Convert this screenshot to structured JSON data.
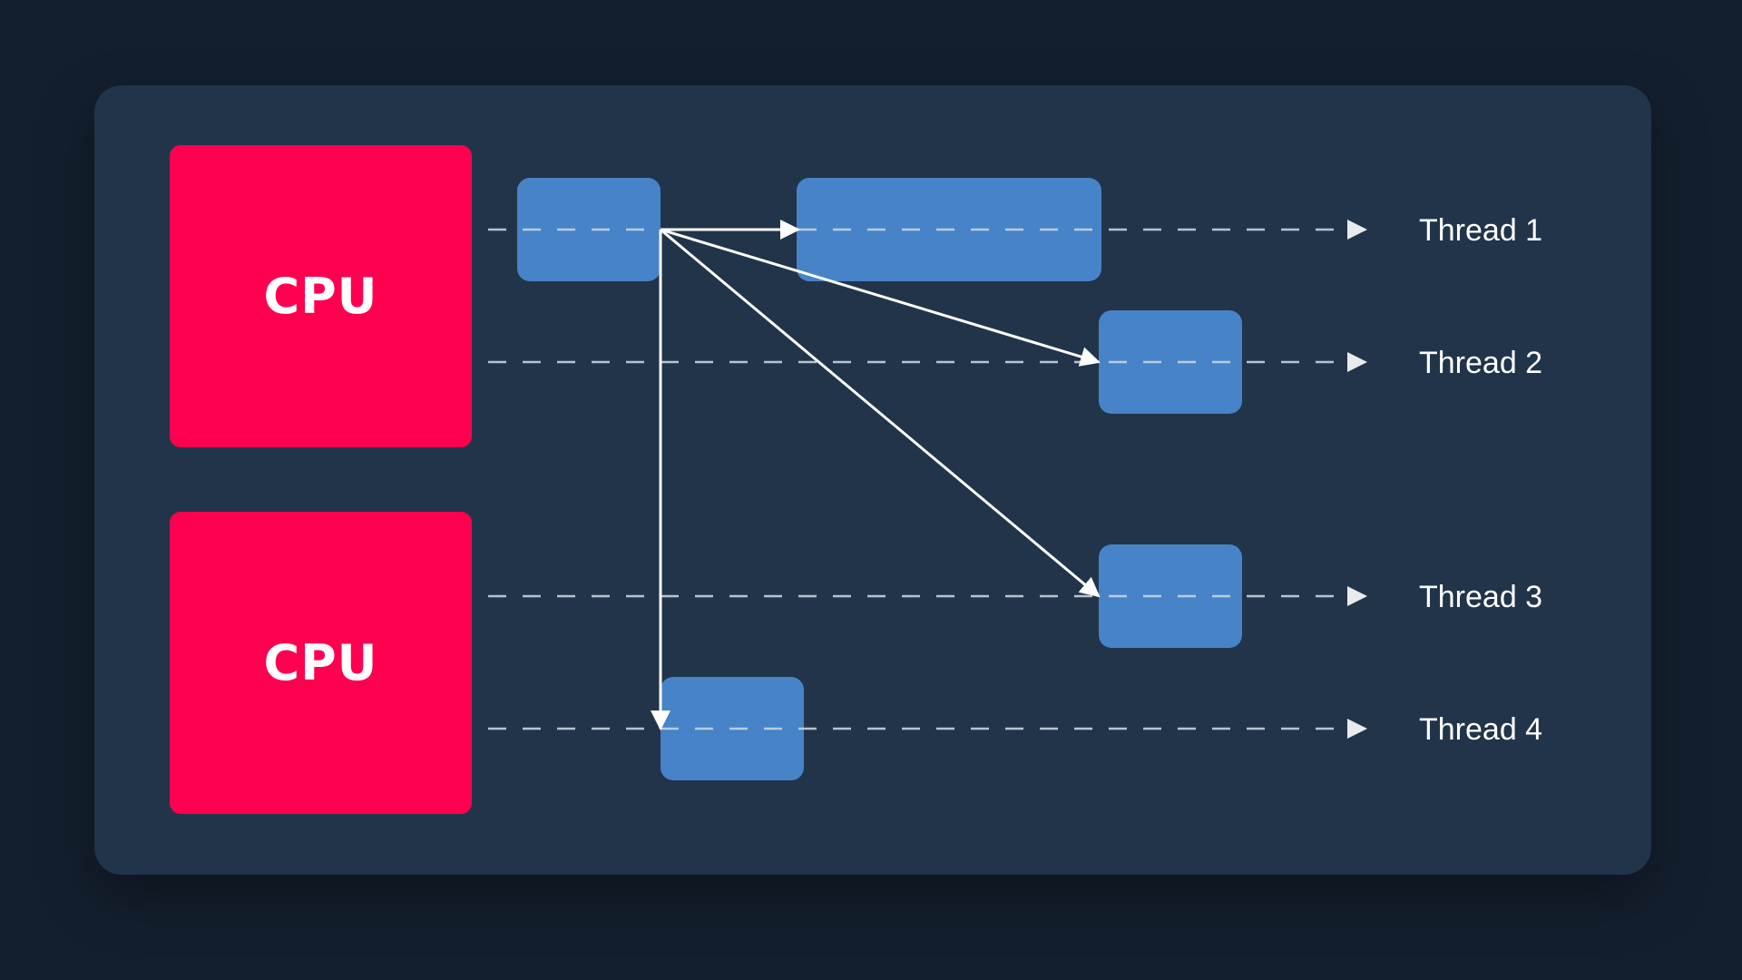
{
  "diagram": {
    "cpus": [
      "CPU",
      "CPU"
    ],
    "threads": [
      "Thread 1",
      "Thread 2",
      "Thread 3",
      "Thread 4"
    ],
    "colors": {
      "background": "#141f2e",
      "panel": "#22344a",
      "cpu": "#ff0050",
      "task": "#4a88cf",
      "line": "#ffffff"
    }
  }
}
